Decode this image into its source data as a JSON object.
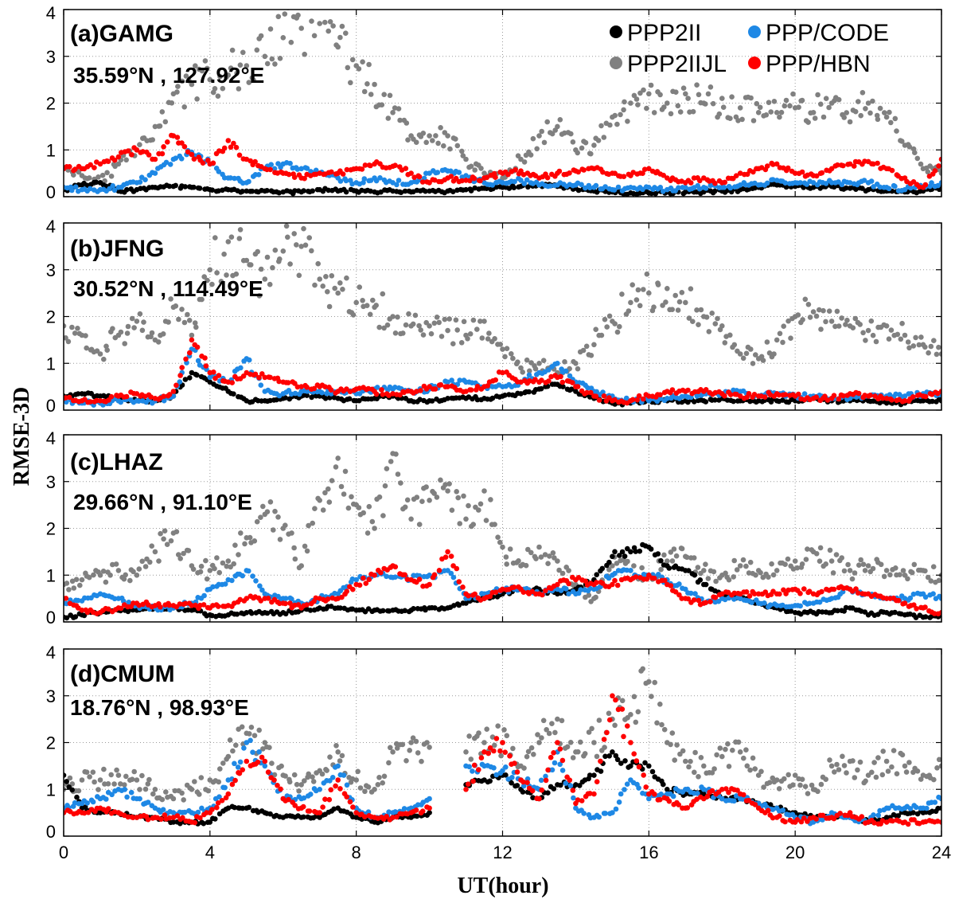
{
  "figure": {
    "xlabel": "UT(hour)",
    "ylabel": "RMSE-3D",
    "xticks": [
      0,
      4,
      8,
      12,
      16,
      20,
      24
    ]
  },
  "chart_data": [
    {
      "type": "scatter",
      "title": "(a)GAMG",
      "annotation": "35.59°N , 127.92°E",
      "xlim": [
        0,
        24
      ],
      "ylim": [
        0,
        4
      ],
      "yticks": [
        0,
        1,
        2,
        3,
        4
      ],
      "grid": true,
      "legend": {
        "placement": "top-right",
        "entries": [
          "PPP2II",
          "PPP/CODE",
          "PPP2IIJL",
          "PPP/HBN"
        ]
      },
      "x": [
        0,
        0.5,
        1,
        1.5,
        2,
        2.5,
        3,
        3.5,
        4,
        4.5,
        5,
        5.5,
        6,
        6.5,
        7,
        7.5,
        8,
        8.5,
        9,
        9.5,
        10,
        10.5,
        11,
        11.5,
        12,
        12.5,
        13,
        13.5,
        14,
        14.5,
        15,
        15.5,
        16,
        16.5,
        17,
        17.5,
        18,
        18.5,
        19,
        19.5,
        20,
        20.5,
        21,
        21.5,
        22,
        22.5,
        23,
        23.5,
        24
      ],
      "series": [
        {
          "name": "PPP2IIJL",
          "color": "#808080",
          "y": [
            0.6,
            0.45,
            0.3,
            0.7,
            1.0,
            1.5,
            2.2,
            2.4,
            2.5,
            2.6,
            2.8,
            3.0,
            3.4,
            3.6,
            3.7,
            3.2,
            2.8,
            2.4,
            1.8,
            1.3,
            1.3,
            1.3,
            0.8,
            0.5,
            0.4,
            0.8,
            1.3,
            1.5,
            1.0,
            1.1,
            1.7,
            2.0,
            2.2,
            2.0,
            2.2,
            2.0,
            2.1,
            1.9,
            1.8,
            1.8,
            1.9,
            1.8,
            2.0,
            1.6,
            2.0,
            1.7,
            1.1,
            0.6,
            0.5
          ]
        },
        {
          "name": "PPP2II",
          "color": "#000000",
          "y": [
            0.15,
            0.25,
            0.3,
            0.12,
            0.15,
            0.2,
            0.22,
            0.2,
            0.15,
            0.15,
            0.12,
            0.12,
            0.1,
            0.1,
            0.15,
            0.12,
            0.12,
            0.1,
            0.12,
            0.1,
            0.12,
            0.12,
            0.15,
            0.18,
            0.2,
            0.22,
            0.25,
            0.22,
            0.18,
            0.12,
            0.1,
            0.08,
            0.08,
            0.1,
            0.1,
            0.1,
            0.12,
            0.15,
            0.2,
            0.25,
            0.22,
            0.2,
            0.22,
            0.18,
            0.15,
            0.12,
            0.1,
            0.12,
            0.2
          ]
        },
        {
          "name": "PPP/CODE",
          "color": "#1e88e5",
          "y": [
            0.2,
            0.15,
            0.15,
            0.2,
            0.3,
            0.5,
            0.8,
            0.95,
            0.7,
            0.4,
            0.3,
            0.6,
            0.7,
            0.6,
            0.5,
            0.4,
            0.3,
            0.4,
            0.3,
            0.3,
            0.5,
            0.55,
            0.45,
            0.3,
            0.3,
            0.35,
            0.25,
            0.25,
            0.25,
            0.2,
            0.15,
            0.2,
            0.2,
            0.15,
            0.2,
            0.2,
            0.2,
            0.25,
            0.25,
            0.35,
            0.3,
            0.3,
            0.3,
            0.3,
            0.3,
            0.2,
            0.15,
            0.2,
            0.3
          ]
        },
        {
          "name": "PPP/HBN",
          "color": "#ff0000",
          "y": [
            0.6,
            0.6,
            0.7,
            0.85,
            1.0,
            0.8,
            1.3,
            0.9,
            0.7,
            1.2,
            0.8,
            0.6,
            0.5,
            0.4,
            0.5,
            0.5,
            0.6,
            0.7,
            0.65,
            0.5,
            0.3,
            0.4,
            0.35,
            0.4,
            0.5,
            0.55,
            0.4,
            0.5,
            0.55,
            0.6,
            0.5,
            0.45,
            0.6,
            0.4,
            0.3,
            0.4,
            0.3,
            0.5,
            0.6,
            0.7,
            0.5,
            0.45,
            0.6,
            0.7,
            0.75,
            0.6,
            0.4,
            0.2,
            0.8
          ]
        }
      ]
    },
    {
      "type": "scatter",
      "title": "(b)JFNG",
      "annotation": "30.52°N , 114.49°E",
      "xlim": [
        0,
        24
      ],
      "ylim": [
        0,
        4
      ],
      "yticks": [
        0,
        1,
        2,
        3,
        4
      ],
      "grid": true,
      "x": [
        0,
        0.5,
        1,
        1.5,
        2,
        2.5,
        3,
        3.5,
        4,
        4.5,
        5,
        5.5,
        6,
        6.5,
        7,
        7.5,
        8,
        8.5,
        9,
        9.5,
        10,
        10.5,
        11,
        11.5,
        12,
        12.5,
        13,
        13.5,
        14,
        14.5,
        15,
        15.5,
        16,
        16.5,
        17,
        17.5,
        18,
        18.5,
        19,
        19.5,
        20,
        20.5,
        21,
        21.5,
        22,
        22.5,
        23,
        23.5,
        24
      ],
      "series": [
        {
          "name": "PPP2IIJL",
          "color": "#808080",
          "y": [
            1.8,
            1.6,
            1.2,
            1.6,
            1.9,
            1.5,
            2.2,
            1.6,
            3.0,
            3.6,
            3.2,
            2.8,
            3.4,
            3.5,
            2.8,
            2.5,
            2.3,
            2.2,
            2.0,
            1.8,
            1.8,
            1.7,
            1.6,
            1.9,
            1.3,
            0.9,
            1.0,
            0.8,
            1.0,
            1.4,
            1.9,
            2.3,
            2.5,
            2.6,
            2.3,
            2.0,
            1.8,
            1.2,
            1.1,
            1.5,
            2.0,
            2.1,
            1.9,
            1.8,
            1.7,
            1.8,
            1.6,
            1.4,
            1.2
          ]
        },
        {
          "name": "PPP2II",
          "color": "#000000",
          "y": [
            0.3,
            0.35,
            0.3,
            0.25,
            0.2,
            0.2,
            0.3,
            0.8,
            0.6,
            0.4,
            0.2,
            0.2,
            0.25,
            0.3,
            0.3,
            0.25,
            0.2,
            0.25,
            0.3,
            0.2,
            0.2,
            0.25,
            0.25,
            0.25,
            0.3,
            0.35,
            0.45,
            0.55,
            0.4,
            0.25,
            0.15,
            0.15,
            0.2,
            0.2,
            0.2,
            0.2,
            0.25,
            0.2,
            0.2,
            0.2,
            0.2,
            0.25,
            0.2,
            0.2,
            0.2,
            0.15,
            0.15,
            0.2,
            0.2
          ]
        },
        {
          "name": "PPP/CODE",
          "color": "#1e88e5",
          "y": [
            0.2,
            0.15,
            0.15,
            0.2,
            0.2,
            0.2,
            0.3,
            1.3,
            0.7,
            0.6,
            1.1,
            0.4,
            0.35,
            0.4,
            0.4,
            0.4,
            0.35,
            0.45,
            0.45,
            0.4,
            0.45,
            0.6,
            0.6,
            0.5,
            0.5,
            0.6,
            0.8,
            1.0,
            0.6,
            0.4,
            0.3,
            0.2,
            0.2,
            0.25,
            0.3,
            0.35,
            0.35,
            0.4,
            0.3,
            0.35,
            0.3,
            0.3,
            0.25,
            0.25,
            0.3,
            0.3,
            0.3,
            0.35,
            0.35
          ]
        },
        {
          "name": "PPP/HBN",
          "color": "#ff0000",
          "y": [
            0.25,
            0.2,
            0.2,
            0.3,
            0.35,
            0.25,
            0.4,
            1.5,
            0.8,
            0.6,
            0.8,
            0.7,
            0.6,
            0.5,
            0.5,
            0.4,
            0.45,
            0.4,
            0.35,
            0.4,
            0.5,
            0.5,
            0.4,
            0.5,
            0.8,
            0.6,
            0.6,
            0.7,
            0.5,
            0.3,
            0.2,
            0.2,
            0.3,
            0.4,
            0.4,
            0.4,
            0.35,
            0.3,
            0.3,
            0.35,
            0.3,
            0.25,
            0.25,
            0.35,
            0.3,
            0.25,
            0.2,
            0.3,
            0.4
          ]
        }
      ]
    },
    {
      "type": "scatter",
      "title": "(c)LHAZ",
      "annotation": "29.66°N , 91.10°E",
      "xlim": [
        0,
        24
      ],
      "ylim": [
        0,
        4
      ],
      "yticks": [
        0,
        1,
        2,
        3,
        4
      ],
      "grid": true,
      "x": [
        0,
        0.5,
        1,
        1.5,
        2,
        2.5,
        3,
        3.5,
        4,
        4.5,
        5,
        5.5,
        6,
        6.5,
        7,
        7.5,
        8,
        8.5,
        9,
        9.5,
        10,
        10.5,
        11,
        11.5,
        12,
        12.5,
        13,
        13.5,
        14,
        14.5,
        15,
        15.5,
        16,
        16.5,
        17,
        17.5,
        18,
        18.5,
        19,
        19.5,
        20,
        20.5,
        21,
        21.5,
        22,
        22.5,
        23,
        23.5,
        24
      ],
      "series": [
        {
          "name": "PPP2IIJL",
          "color": "#808080",
          "y": [
            0.8,
            0.9,
            1.0,
            1.1,
            1.0,
            1.5,
            1.9,
            1.2,
            1.1,
            1.3,
            1.8,
            2.3,
            2.0,
            1.2,
            2.6,
            3.5,
            2.5,
            2.0,
            3.6,
            2.2,
            2.6,
            2.8,
            2.2,
            2.8,
            1.6,
            1.2,
            1.6,
            1.3,
            0.8,
            0.5,
            1.2,
            1.1,
            1.0,
            1.3,
            1.4,
            1.1,
            1.0,
            1.2,
            1.1,
            1.1,
            1.3,
            1.5,
            1.3,
            1.1,
            1.2,
            1.1,
            1.0,
            1.1,
            1.0
          ]
        },
        {
          "name": "PPP2II",
          "color": "#000000",
          "y": [
            0.1,
            0.15,
            0.2,
            0.25,
            0.25,
            0.3,
            0.3,
            0.25,
            0.15,
            0.15,
            0.2,
            0.2,
            0.2,
            0.25,
            0.3,
            0.3,
            0.25,
            0.25,
            0.25,
            0.25,
            0.3,
            0.3,
            0.4,
            0.5,
            0.6,
            0.7,
            0.7,
            0.6,
            0.7,
            0.9,
            1.4,
            1.5,
            1.6,
            1.2,
            1.1,
            0.8,
            0.6,
            0.5,
            0.4,
            0.3,
            0.2,
            0.2,
            0.2,
            0.3,
            0.15,
            0.2,
            0.15,
            0.1,
            0.15
          ]
        },
        {
          "name": "PPP/CODE",
          "color": "#1e88e5",
          "y": [
            0.4,
            0.45,
            0.6,
            0.5,
            0.35,
            0.3,
            0.3,
            0.4,
            0.7,
            0.9,
            1.1,
            0.6,
            0.5,
            0.4,
            0.5,
            0.6,
            0.9,
            1.0,
            0.95,
            0.9,
            1.0,
            1.1,
            0.5,
            0.6,
            0.7,
            0.7,
            0.6,
            0.7,
            0.6,
            0.7,
            1.0,
            1.1,
            1.0,
            0.9,
            0.7,
            0.4,
            0.5,
            0.5,
            0.4,
            0.35,
            0.35,
            0.4,
            0.5,
            0.7,
            0.6,
            0.5,
            0.5,
            0.6,
            0.5
          ]
        },
        {
          "name": "PPP/HBN",
          "color": "#ff0000",
          "y": [
            0.5,
            0.25,
            0.2,
            0.3,
            0.4,
            0.35,
            0.35,
            0.35,
            0.3,
            0.35,
            0.5,
            0.5,
            0.4,
            0.3,
            0.5,
            0.5,
            0.8,
            1.0,
            1.2,
            0.9,
            0.8,
            1.5,
            0.6,
            0.5,
            0.7,
            0.7,
            0.6,
            0.8,
            0.9,
            0.8,
            0.8,
            0.9,
            1.0,
            0.8,
            0.5,
            0.4,
            0.6,
            0.6,
            0.6,
            0.6,
            0.7,
            0.6,
            0.7,
            0.7,
            0.6,
            0.5,
            0.4,
            0.3,
            0.2
          ]
        }
      ]
    },
    {
      "type": "scatter",
      "title": "(d)CMUM",
      "annotation": "18.76°N , 98.93°E",
      "xlim": [
        0,
        24
      ],
      "ylim": [
        0,
        4
      ],
      "yticks": [
        0,
        1,
        2,
        3,
        4
      ],
      "grid": true,
      "x": [
        0,
        0.5,
        1,
        1.5,
        2,
        2.5,
        3,
        3.5,
        4,
        4.5,
        5,
        5.5,
        6,
        6.5,
        7,
        7.5,
        8,
        8.5,
        9,
        9.5,
        10,
        10.5,
        11,
        11.5,
        12,
        12.5,
        13,
        13.5,
        14,
        14.5,
        15,
        15.5,
        16,
        16.5,
        17,
        17.5,
        18,
        18.5,
        19,
        19.5,
        20,
        20.5,
        21,
        21.5,
        22,
        22.5,
        23,
        23.5,
        24
      ],
      "series": [
        {
          "name": "PPP2IIJL",
          "color": "#808080",
          "y": [
            1.0,
            1.2,
            1.2,
            1.3,
            1.2,
            1.0,
            0.8,
            1.0,
            1.2,
            1.7,
            2.2,
            2.0,
            1.3,
            1.1,
            1.4,
            1.8,
            1.2,
            1.0,
            1.8,
            2.0,
            1.9,
            null,
            1.8,
            2.0,
            2.0,
            1.5,
            2.0,
            2.5,
            1.8,
            2.0,
            2.5,
            2.6,
            3.3,
            2.0,
            1.6,
            1.5,
            1.7,
            1.8,
            1.3,
            1.2,
            1.3,
            1.0,
            1.5,
            1.6,
            1.3,
            1.6,
            1.5,
            1.3,
            1.5
          ]
        },
        {
          "name": "PPP2II",
          "color": "#000000",
          "y": [
            1.3,
            0.6,
            0.5,
            0.5,
            0.4,
            0.4,
            0.3,
            0.3,
            0.3,
            0.6,
            0.6,
            0.5,
            0.4,
            0.4,
            0.4,
            0.6,
            0.4,
            0.3,
            0.4,
            0.4,
            0.5,
            null,
            1.1,
            1.2,
            1.3,
            1.0,
            0.8,
            1.1,
            1.1,
            1.3,
            1.8,
            1.5,
            1.5,
            1.0,
            0.9,
            0.9,
            0.8,
            0.8,
            0.7,
            0.6,
            0.5,
            0.4,
            0.4,
            0.4,
            0.3,
            0.4,
            0.5,
            0.5,
            0.6
          ]
        },
        {
          "name": "PPP/CODE",
          "color": "#1e88e5",
          "y": [
            0.6,
            0.7,
            0.8,
            1.0,
            0.8,
            0.6,
            0.5,
            0.5,
            0.6,
            1.2,
            2.0,
            1.5,
            0.8,
            0.8,
            1.0,
            1.5,
            0.6,
            0.4,
            0.5,
            0.6,
            0.8,
            null,
            1.5,
            1.5,
            1.4,
            1.2,
            1.0,
            1.8,
            0.6,
            0.4,
            0.5,
            1.2,
            0.8,
            0.9,
            1.0,
            1.0,
            0.8,
            0.8,
            0.7,
            0.6,
            0.4,
            0.3,
            0.5,
            0.4,
            0.3,
            0.6,
            0.6,
            0.6,
            0.8
          ]
        },
        {
          "name": "PPP/HBN",
          "color": "#ff0000",
          "y": [
            0.5,
            0.5,
            0.6,
            0.5,
            0.4,
            0.4,
            0.4,
            0.3,
            0.5,
            0.9,
            1.6,
            1.6,
            0.8,
            0.6,
            0.5,
            1.2,
            0.5,
            0.4,
            0.4,
            0.5,
            0.6,
            null,
            1.0,
            1.8,
            2.0,
            1.2,
            0.8,
            2.0,
            0.7,
            0.9,
            3.0,
            2.0,
            0.9,
            0.8,
            0.6,
            0.8,
            1.0,
            0.9,
            0.6,
            0.4,
            0.3,
            0.4,
            0.4,
            0.5,
            0.3,
            0.3,
            0.3,
            0.3,
            0.3
          ]
        }
      ]
    }
  ]
}
